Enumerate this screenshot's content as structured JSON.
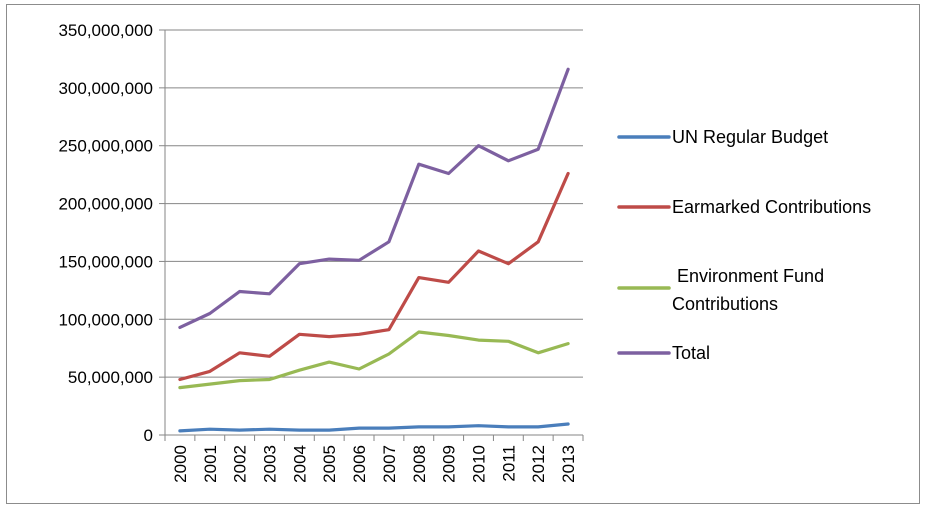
{
  "chart_data": {
    "type": "line",
    "title": "",
    "xlabel": "",
    "ylabel": "",
    "x": [
      "2000",
      "2001",
      "2002",
      "2003",
      "2004",
      "2005",
      "2006",
      "2007",
      "2008",
      "2009",
      "2010",
      "2011",
      "2012",
      "2013"
    ],
    "ylim": [
      0,
      350000000
    ],
    "yticks": [
      0,
      50000000,
      100000000,
      150000000,
      200000000,
      250000000,
      300000000,
      350000000
    ],
    "ytick_labels": [
      "0",
      "50,000,000",
      "100,000,000",
      "150,000,000",
      "200,000,000",
      "250,000,000",
      "300,000,000",
      "350,000,000"
    ],
    "grid": "horizontal",
    "legend_position": "right",
    "series": [
      {
        "name": "UN Regular Budget",
        "color": "#4a7ebb",
        "values": [
          3500000,
          5000000,
          4200000,
          5000000,
          4200000,
          4200000,
          6000000,
          6000000,
          7000000,
          7000000,
          8000000,
          7000000,
          7000000,
          9500000
        ]
      },
      {
        "name": "Earmarked Contributions",
        "color": "#be4b48",
        "values": [
          48000000,
          55000000,
          71000000,
          68000000,
          87000000,
          85000000,
          87000000,
          91000000,
          136000000,
          132000000,
          159000000,
          148000000,
          167000000,
          226000000
        ]
      },
      {
        "name": " Environment Fund Contributions",
        "legend_lines": [
          " Environment Fund",
          "Contributions"
        ],
        "color": "#98b954",
        "values": [
          41000000,
          44000000,
          47000000,
          48000000,
          56000000,
          63000000,
          57000000,
          70000000,
          89000000,
          86000000,
          82000000,
          81000000,
          71000000,
          79000000
        ]
      },
      {
        "name": "Total",
        "color": "#7d60a0",
        "values": [
          93000000,
          105000000,
          124000000,
          122000000,
          148000000,
          152000000,
          151000000,
          167000000,
          234000000,
          226000000,
          250000000,
          237000000,
          247000000,
          316000000
        ]
      }
    ]
  }
}
